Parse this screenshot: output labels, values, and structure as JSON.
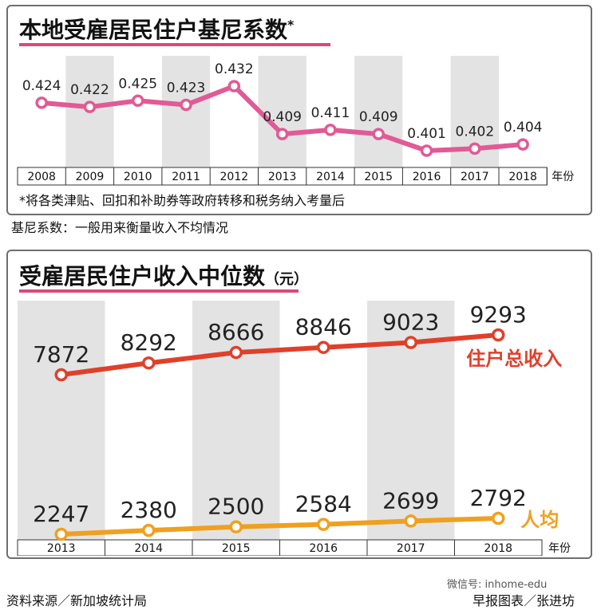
{
  "chart_data": [
    {
      "type": "line",
      "title": "本地受雇居民住户基尼系数",
      "title_mark": "*",
      "x": [
        "2008",
        "2009",
        "2010",
        "2011",
        "2012",
        "2013",
        "2014",
        "2015",
        "2016",
        "2017",
        "2018"
      ],
      "axis_unit": "年份",
      "series": [
        {
          "values": [
            0.424,
            0.422,
            0.425,
            0.423,
            0.432,
            0.409,
            0.411,
            0.409,
            0.401,
            0.402,
            0.404
          ],
          "color": "#e15a96"
        }
      ],
      "value_labels": [
        "0.424",
        "0.422",
        "0.425",
        "0.423",
        "0.432",
        "0.409",
        "0.411",
        "0.409",
        "0.401",
        "0.402",
        "0.404"
      ],
      "ylim": [
        0.398,
        0.434
      ],
      "shaded_columns": "alternate",
      "footnote": "*将各类津贴、回扣和补助券等政府转移和税务纳入考量后"
    },
    {
      "type": "line",
      "title": "受雇居民住户收入中位数",
      "unit": "（元）",
      "x": [
        "2013",
        "2014",
        "2015",
        "2016",
        "2017",
        "2018"
      ],
      "axis_unit": "年份",
      "series": [
        {
          "name": "住户总收入",
          "values": [
            7872,
            8292,
            8666,
            8846,
            9023,
            9293
          ],
          "labels": [
            "7872",
            "8292",
            "8666",
            "8846",
            "9023",
            "9293"
          ],
          "color": "#e0402a"
        },
        {
          "name": "人均",
          "values": [
            2247,
            2380,
            2500,
            2584,
            2699,
            2792
          ],
          "labels": [
            "2247",
            "2380",
            "2500",
            "2584",
            "2699",
            "2792"
          ],
          "color": "#f0a020"
        }
      ],
      "shaded_columns": "alternate"
    }
  ],
  "definition_note": "基尼系数：一般用来衡量收入不均情况",
  "footer": {
    "source": "资料来源／新加坡统计局",
    "credit": "早报图表／张进坊",
    "watermark": "微信号: inhome-edu"
  }
}
